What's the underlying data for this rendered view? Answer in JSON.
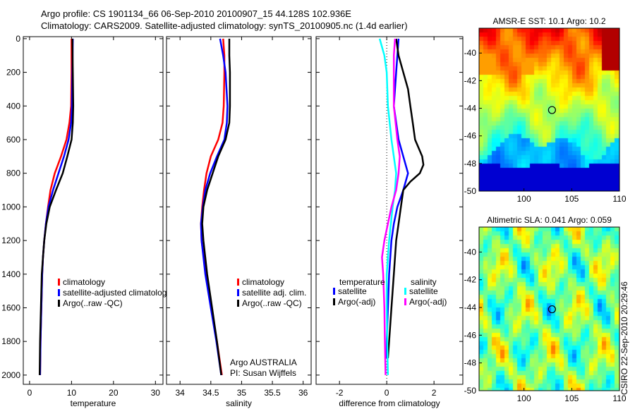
{
  "title_line1": "Argo profile: CS 1901134_66 06-Sep-2010 20100907_15 44.128S 102.936E",
  "title_line2": "Climatology: CARS2009. Satellite-adjusted climatology: synTS_20100905.nc (1.4d earlier)",
  "footer": "CSIRO 22-Sep-2010 20:29:46",
  "colors": {
    "climatology": "#ff0000",
    "satellite": "#0000ff",
    "argo": "#000000",
    "sal_sat": "#00ffff",
    "sal_argo": "#ff00ff"
  },
  "chart_data": [
    {
      "type": "line",
      "xlabel": "temperature",
      "ylabel": "",
      "xlim": [
        -1.5,
        31.8
      ],
      "ylim": [
        2055,
        -12
      ],
      "xticks": [
        0,
        10,
        20,
        30
      ],
      "yticks": [
        0,
        200,
        400,
        600,
        800,
        1000,
        1200,
        1400,
        1600,
        1800,
        2000
      ],
      "legend": [
        "climatology",
        "satellite-adjusted climatology",
        "Argo(..raw -QC)"
      ],
      "series": [
        {
          "name": "climatology",
          "color": "#ff0000",
          "depth": [
            0,
            200,
            400,
            500,
            600,
            700,
            800,
            900,
            1000,
            1100,
            1200,
            1300,
            1400,
            1600,
            1800,
            2000
          ],
          "values": [
            10,
            10,
            9.9,
            9.5,
            8.8,
            7.5,
            6.0,
            5.0,
            4.4,
            3.9,
            3.5,
            3.2,
            3.0,
            2.8,
            2.6,
            2.5
          ]
        },
        {
          "name": "satellite-adjusted climatology",
          "color": "#0000ff",
          "depth": [
            0,
            200,
            400,
            500,
            600,
            700,
            800,
            900,
            1000,
            1100,
            1200,
            1300,
            1400,
            1600,
            1800,
            2000
          ],
          "values": [
            10.3,
            10.2,
            10.1,
            9.9,
            9.3,
            8.2,
            6.9,
            5.6,
            4.5,
            3.9,
            3.5,
            3.2,
            3.0,
            2.8,
            2.6,
            2.5
          ]
        },
        {
          "name": "Argo(..raw -QC)",
          "color": "#000000",
          "depth": [
            0,
            200,
            400,
            500,
            600,
            700,
            800,
            900,
            1000,
            1100,
            1200,
            1300,
            1400,
            1600,
            1800,
            2000
          ],
          "values": [
            10.2,
            10.3,
            10.4,
            10.3,
            10.0,
            9.0,
            7.9,
            6.3,
            4.8,
            4.0,
            3.5,
            3.2,
            2.9,
            2.7,
            2.5,
            2.4
          ]
        }
      ]
    },
    {
      "type": "line",
      "xlabel": "salinity",
      "xlim": [
        33.78,
        36.13
      ],
      "ylim": [
        2055,
        -12
      ],
      "xticks": [
        34,
        34.5,
        35,
        35.5,
        36
      ],
      "legend": [
        "climatology",
        "satellite adj. clim.",
        "Argo(..raw -QC)"
      ],
      "annotation": [
        "Argo AUSTRALIA",
        "PI: Susan Wijffels"
      ],
      "series": [
        {
          "name": "climatology",
          "color": "#ff0000",
          "depth": [
            0,
            100,
            200,
            400,
            500,
            600,
            700,
            800,
            900,
            1000,
            1100,
            1200,
            1400,
            1600,
            1800,
            2000
          ],
          "values": [
            34.7,
            34.72,
            34.72,
            34.71,
            34.69,
            34.62,
            34.5,
            34.43,
            34.39,
            34.36,
            34.34,
            34.35,
            34.42,
            34.51,
            34.6,
            34.68
          ]
        },
        {
          "name": "satellite adj. clim.",
          "color": "#0000ff",
          "depth": [
            0,
            100,
            200,
            400,
            500,
            600,
            700,
            800,
            900,
            1000,
            1100,
            1200,
            1400,
            1600,
            1800,
            2000
          ],
          "values": [
            34.65,
            34.7,
            34.74,
            34.77,
            34.76,
            34.72,
            34.6,
            34.49,
            34.41,
            34.37,
            34.34,
            34.35,
            34.41,
            34.5,
            34.59,
            34.67
          ]
        },
        {
          "name": "Argo(..raw -QC)",
          "color": "#000000",
          "depth": [
            0,
            100,
            200,
            400,
            500,
            600,
            700,
            800,
            900,
            1000,
            1100,
            1200,
            1400,
            1600,
            1800,
            2000
          ],
          "values": [
            34.8,
            34.8,
            34.81,
            34.81,
            34.8,
            34.74,
            34.62,
            34.53,
            34.44,
            34.38,
            34.36,
            34.38,
            34.44,
            34.52,
            34.6,
            34.67
          ]
        }
      ]
    },
    {
      "type": "line",
      "xlabel": "difference from climatology",
      "xlim": [
        -2.99,
        3.22
      ],
      "ylim": [
        2055,
        -12
      ],
      "xticks": [
        -2,
        0,
        2
      ],
      "legend_temperature": {
        "title": "temperature",
        "items": [
          "satellite",
          "Argo(-adj)"
        ]
      },
      "legend_salinity": {
        "title": "salinity",
        "items": [
          "satellite",
          "Argo(-adj)"
        ]
      },
      "series": [
        {
          "name": "temperature satellite",
          "color": "#0000ff",
          "depth": [
            0,
            200,
            400,
            600,
            800,
            900,
            1000,
            1100,
            1200,
            1400,
            1600,
            1800,
            1900
          ],
          "values": [
            0.5,
            0.4,
            0.3,
            0.5,
            0.9,
            0.7,
            0.45,
            0.3,
            0.2,
            0.1,
            0.05,
            0.0,
            0.0
          ]
        },
        {
          "name": "temperature Argo(-adj)",
          "color": "#000000",
          "depth": [
            0,
            100,
            200,
            300,
            400,
            500,
            600,
            700,
            750,
            800,
            850,
            900,
            1000,
            1100,
            1200,
            1400,
            1600,
            1800,
            1900
          ],
          "values": [
            0.4,
            0.5,
            0.7,
            0.9,
            1.0,
            1.1,
            1.2,
            1.5,
            1.55,
            1.4,
            1.0,
            0.7,
            0.6,
            0.5,
            0.4,
            0.3,
            0.2,
            0.1,
            0.05
          ]
        },
        {
          "name": "salinity satellite",
          "color": "#00ffff",
          "depth": [
            0,
            100,
            200,
            400,
            600,
            800,
            900,
            1000,
            1200,
            1400,
            1600,
            1800,
            2000
          ],
          "values": [
            -0.3,
            -0.1,
            0.0,
            0.05,
            0.2,
            0.4,
            0.35,
            0.25,
            0.1,
            0.0,
            0.0,
            0.02,
            0.05
          ]
        },
        {
          "name": "salinity Argo(-adj)",
          "color": "#ff00ff",
          "depth": [
            0,
            100,
            200,
            400,
            600,
            700,
            800,
            900,
            1000,
            1100,
            1200,
            1300,
            1400,
            1600,
            1800,
            2000
          ],
          "values": [
            0.35,
            0.3,
            0.3,
            0.3,
            0.45,
            0.55,
            0.5,
            0.4,
            0.2,
            0.05,
            -0.1,
            -0.2,
            -0.15,
            -0.1,
            -0.08,
            -0.05
          ]
        }
      ]
    },
    {
      "type": "heatmap",
      "title": "AMSR-E SST: 10.1  Argo: 10.2",
      "xlim": [
        95.3,
        110
      ],
      "ylim": [
        -50,
        -38.2
      ],
      "xticks": [
        100,
        105,
        110
      ],
      "yticks": [
        -40,
        -42,
        -44,
        -46,
        -48,
        -50
      ],
      "marker": [
        102.936,
        -44.128
      ]
    },
    {
      "type": "heatmap",
      "title": "Altimetric SLA: 0.041  Argo: 0.059",
      "xlim": [
        95.3,
        110
      ],
      "ylim": [
        -50,
        -38.2
      ],
      "xticks": [
        100,
        105,
        110
      ],
      "yticks": [
        -40,
        -42,
        -44,
        -46,
        -48,
        -50
      ],
      "marker": [
        102.936,
        -44.128
      ]
    }
  ]
}
